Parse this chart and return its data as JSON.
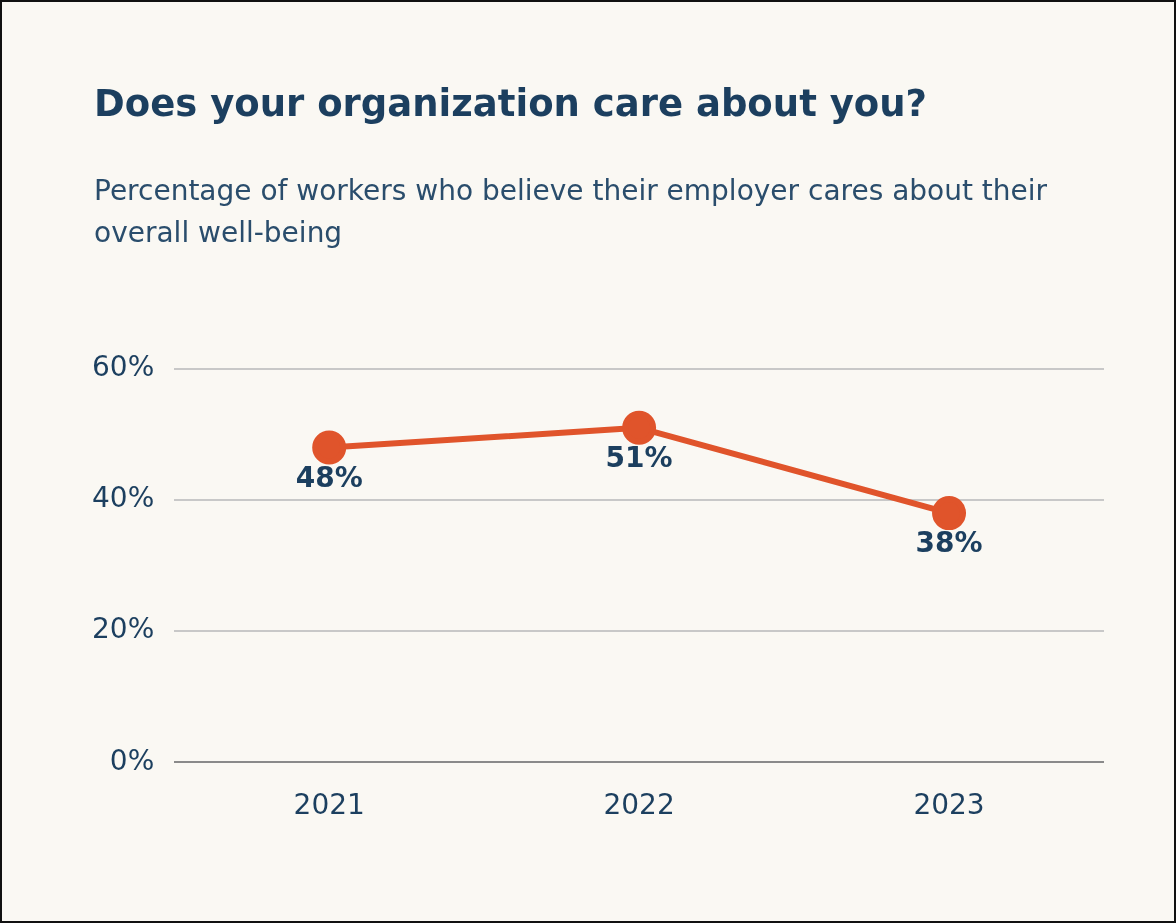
{
  "chart_data": {
    "type": "line",
    "title": "Does your organization care about you?",
    "subtitle": "Percentage of workers who believe their employer cares about their overall well-being",
    "categories": [
      "2021",
      "2022",
      "2023"
    ],
    "series": [
      {
        "color": "#e0542b",
        "values": [
          48,
          51,
          38
        ],
        "value_labels": [
          "48%",
          "51%",
          "38%"
        ]
      }
    ],
    "ylim": [
      0,
      60
    ],
    "yticks": [
      {
        "value": 0,
        "label": "0%"
      },
      {
        "value": 20,
        "label": "20%"
      },
      {
        "value": 40,
        "label": "40%"
      },
      {
        "value": 60,
        "label": "60%"
      }
    ],
    "grid": "y",
    "legend": false,
    "marker": "circle"
  }
}
